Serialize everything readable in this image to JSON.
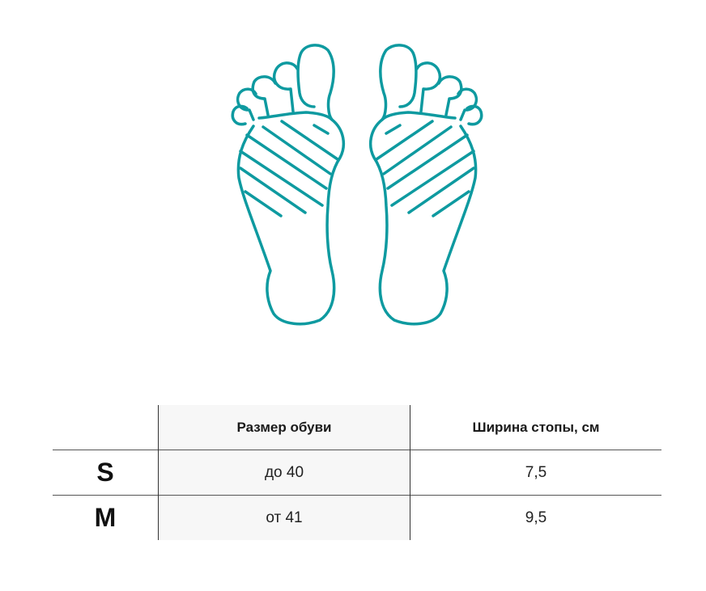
{
  "colors": {
    "accent": "#0e9aa0",
    "text": "#1a1a1a"
  },
  "illustration": {
    "icon": "feet-soles-icon"
  },
  "table": {
    "headers": [
      "",
      "Размер обуви",
      "Ширина стопы, см"
    ],
    "rows": [
      {
        "size": "S",
        "shoe_size": "до 40",
        "width": "7,5"
      },
      {
        "size": "M",
        "shoe_size": "от 41",
        "width": "9,5"
      }
    ]
  }
}
